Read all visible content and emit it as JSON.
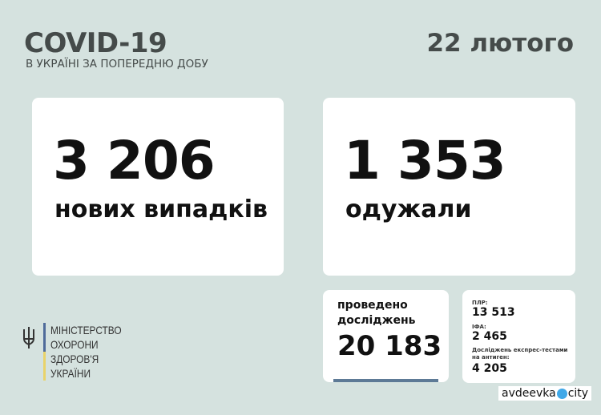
{
  "header": {
    "title": "COVID-19",
    "subtitle": "В УКРАЇНІ ЗА ПОПЕРЕДНЮ ДОБУ",
    "date": "22 лютого"
  },
  "new_cases": {
    "value": "3 206",
    "label": "нових випадків"
  },
  "recovered": {
    "value": "1 353",
    "label": "одужали"
  },
  "tests": {
    "label_line1": "проведено",
    "label_line2": "досліджень",
    "value": "20 183",
    "bar_color": "#5d7a96"
  },
  "breakdown": {
    "pcr_label": "ПЛР:",
    "pcr_value": "13 513",
    "ifa_label": "ІФА:",
    "ifa_value": "2 465",
    "antigen_label_line1": "Досліджень експрес-тестами",
    "antigen_label_line2": "на антиген:",
    "antigen_value": "4 205"
  },
  "ministry": {
    "line1": "МІНІСТЕРСТВО",
    "line2": "ОХОРОНИ",
    "line3": "ЗДОРОВ'Я",
    "line4": "УКРАЇНИ",
    "icon": "trident-icon"
  },
  "watermark": {
    "left": "avdeevka",
    "right": "city"
  }
}
